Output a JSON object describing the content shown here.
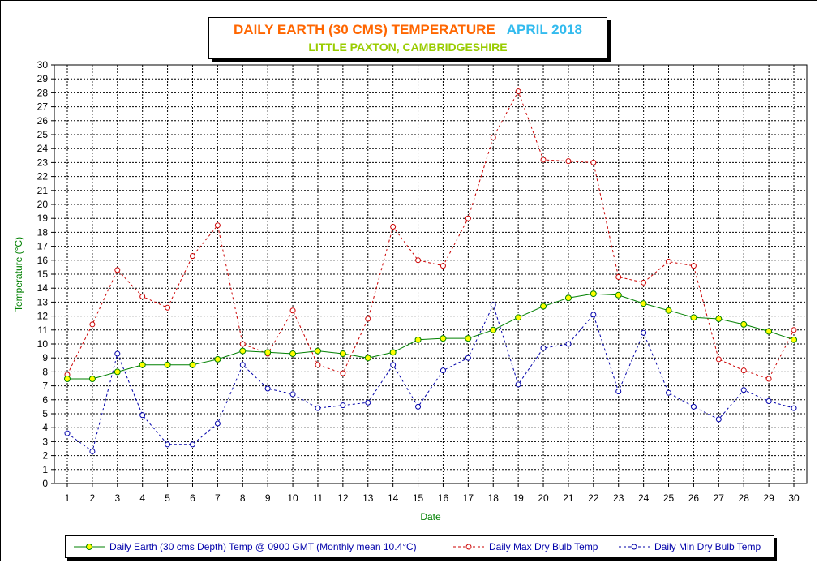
{
  "title": {
    "main": "DAILY EARTH (30 CMS) TEMPERATURE",
    "month": "APRIL 2018",
    "subtitle": "LITTLE PAXTON, CAMBRIDGESHIRE"
  },
  "colors": {
    "title": "#ff6600",
    "month": "#33bbee",
    "subtitle": "#99cc00",
    "earth_line": "#008000",
    "earth_marker": "#ffff00",
    "max_line": "#cc0000",
    "min_line": "#0000aa",
    "axis_label": "#008000"
  },
  "chart_data": {
    "type": "line",
    "xlabel": "Date",
    "ylabel": "Temperature (°C)",
    "ylim": [
      0,
      30
    ],
    "y_ticks": [
      0,
      1,
      2,
      3,
      4,
      5,
      6,
      7,
      8,
      9,
      10,
      11,
      12,
      13,
      14,
      15,
      16,
      17,
      18,
      19,
      20,
      21,
      22,
      23,
      24,
      25,
      26,
      27,
      28,
      29,
      30
    ],
    "x": [
      "1",
      "2",
      "3",
      "4",
      "5",
      "6",
      "7",
      "8",
      "9",
      "10",
      "11",
      "12",
      "13",
      "14",
      "15",
      "16",
      "17",
      "18",
      "19",
      "20",
      "21",
      "22",
      "23",
      "24",
      "25",
      "26",
      "27",
      "28",
      "29",
      "30"
    ],
    "grid": true,
    "legend_position": "bottom",
    "series": [
      {
        "name": "Daily Earth (30 cms Depth) Temp @ 0900 GMT (Monthly mean 10.4°C)",
        "style": "solid",
        "values": [
          7.5,
          7.5,
          8.0,
          8.5,
          8.5,
          8.5,
          8.9,
          9.5,
          9.4,
          9.3,
          9.5,
          9.3,
          9.0,
          9.4,
          10.3,
          10.4,
          10.4,
          11.0,
          11.9,
          12.7,
          13.3,
          13.6,
          13.5,
          12.9,
          12.4,
          11.9,
          11.8,
          11.4,
          10.9,
          10.3
        ]
      },
      {
        "name": "Daily Max Dry Bulb Temp",
        "style": "dashed",
        "values": [
          7.8,
          11.4,
          15.3,
          13.4,
          12.6,
          16.3,
          18.5,
          10.0,
          9.3,
          12.4,
          8.5,
          7.9,
          11.8,
          18.4,
          16.0,
          15.6,
          19.0,
          24.8,
          28.1,
          23.2,
          23.1,
          23.0,
          14.8,
          14.4,
          15.9,
          15.6,
          8.9,
          8.1,
          7.5,
          11.0
        ]
      },
      {
        "name": "Daily Min Dry Bulb Temp",
        "style": "dashed",
        "values": [
          3.6,
          2.3,
          9.3,
          4.9,
          2.8,
          2.8,
          4.3,
          8.5,
          6.8,
          6.4,
          5.4,
          5.6,
          5.8,
          8.5,
          5.5,
          8.1,
          9.0,
          12.8,
          7.1,
          9.7,
          10.0,
          12.1,
          6.6,
          10.8,
          6.5,
          5.5,
          4.6,
          6.7,
          5.9,
          5.4
        ]
      }
    ]
  }
}
